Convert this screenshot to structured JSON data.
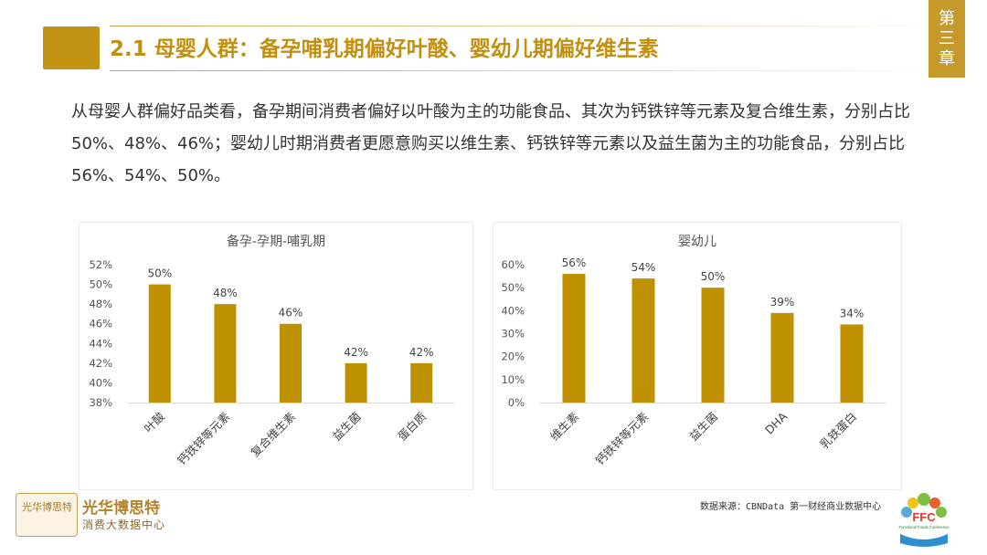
{
  "header": {
    "title": "2.1 母婴人群：备孕哺乳期偏好叶酸、婴幼儿期偏好维生素",
    "chapter_chars": [
      "第",
      "三",
      "章"
    ]
  },
  "body": {
    "paragraph": "从母婴人群偏好品类看，备孕期间消费者偏好以叶酸为主的功能食品、其次为钙铁锌等元素及复合维生素，分别占比50%、48%、46%；婴幼儿时期消费者更愿意购买以维生素、钙铁锌等元素以及益生菌为主的功能食品，分别占比56%、54%、50%。"
  },
  "chart_data": [
    {
      "type": "bar",
      "title": "备孕-孕期-哺乳期",
      "categories": [
        "叶酸",
        "钙铁锌等元素",
        "复合维生素",
        "益生菌",
        "蛋白质"
      ],
      "values": [
        50,
        48,
        46,
        42,
        42
      ],
      "value_labels": [
        "50%",
        "48%",
        "46%",
        "42%",
        "42%"
      ],
      "ylim": [
        38,
        52
      ],
      "yticks": [
        "38%",
        "40%",
        "42%",
        "44%",
        "46%",
        "48%",
        "50%",
        "52%"
      ],
      "grid": false,
      "color": "#bf9000"
    },
    {
      "type": "bar",
      "title": "婴幼儿",
      "categories": [
        "维生素",
        "钙铁锌等元素",
        "益生菌",
        "DHA",
        "乳铁蛋白"
      ],
      "values": [
        56,
        54,
        50,
        39,
        34
      ],
      "value_labels": [
        "56%",
        "54%",
        "50%",
        "39%",
        "34%"
      ],
      "ylim": [
        0,
        60
      ],
      "yticks": [
        "0%",
        "10%",
        "20%",
        "30%",
        "40%",
        "50%",
        "60%"
      ],
      "grid": false,
      "color": "#bf9000"
    }
  ],
  "footer": {
    "logo_text": "光华博思特",
    "brand_name": "光华博思特",
    "brand_sub": "消费大数据中心",
    "source": "数据来源：CBNData 第一财经商业数据中心",
    "ffc_logo_text": "FFC",
    "ffc_logo_sub": "Functional Foods Conference"
  },
  "colors": {
    "accent": "#c39316",
    "bar": "#bf9000"
  }
}
